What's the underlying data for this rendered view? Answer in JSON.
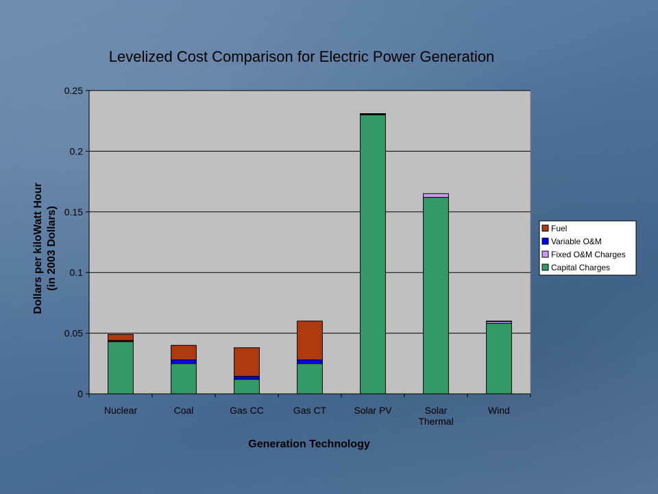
{
  "chart_data": {
    "type": "bar",
    "stacked": true,
    "title": "Levelized Cost Comparison for Electric Power Generation",
    "xlabel": "Generation Technology",
    "ylabel_lines": [
      "Dollars per kiloWatt Hour",
      "(in 2003 Dollars)"
    ],
    "ylim": [
      0,
      0.25
    ],
    "yticks": [
      0,
      0.05,
      0.1,
      0.15,
      0.2,
      0.25
    ],
    "ytick_labels": [
      "0",
      "0.05",
      "0.1",
      "0.15",
      "0.2",
      "0.25"
    ],
    "grid": true,
    "legend_position": "right",
    "categories": [
      "Nuclear",
      "Coal",
      "Gas CC",
      "Gas CT",
      "Solar PV",
      "Solar Thermal",
      "Wind"
    ],
    "category_labels": [
      [
        "Nuclear"
      ],
      [
        "Coal"
      ],
      [
        "Gas CC"
      ],
      [
        "Gas CT"
      ],
      [
        "Solar PV"
      ],
      [
        "Solar",
        "Thermal"
      ],
      [
        "Wind"
      ]
    ],
    "series": [
      {
        "name": "Capital Charges",
        "color": "#339966",
        "values": [
          0.043,
          0.025,
          0.012,
          0.025,
          0.23,
          0.162,
          0.058
        ]
      },
      {
        "name": "Fixed O&M Charges",
        "color": "#cc99ff",
        "values": [
          0.0005,
          0.0,
          0.0,
          0.0,
          0.0005,
          0.003,
          0.0015
        ]
      },
      {
        "name": "Variable O&M",
        "color": "#0000ff",
        "values": [
          0.0005,
          0.003,
          0.0025,
          0.003,
          0.0005,
          0.0,
          0.0005
        ]
      },
      {
        "name": "Fuel",
        "color": "#b03a10",
        "values": [
          0.005,
          0.012,
          0.0235,
          0.032,
          0.0,
          0.0,
          0.0
        ]
      }
    ],
    "legend_order": [
      "Fuel",
      "Variable O&M",
      "Fixed O&M Charges",
      "Capital Charges"
    ]
  }
}
